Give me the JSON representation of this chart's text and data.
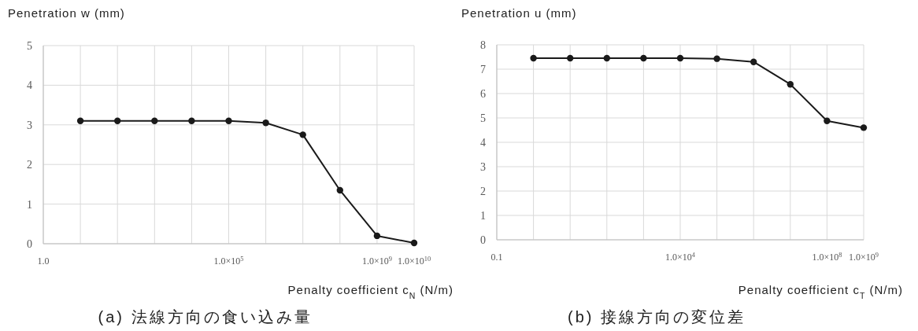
{
  "chart_data": [
    {
      "type": "line",
      "title": "(a) 法線方向の食い込み量",
      "ylabel": "Penetration w (mm)",
      "xlabel": "Penalty coefficient c$_{N}$ (N/m)",
      "categories": [
        "1.0",
        null,
        null,
        null,
        null,
        "1.0×10$^{5}$",
        null,
        null,
        null,
        "1.0×10$^{9}$",
        "1.0×10$^{10}$"
      ],
      "series": [
        {
          "color": "#1a1a1a",
          "values": [
            null,
            3.1,
            3.1,
            3.1,
            3.1,
            3.1,
            3.05,
            2.75,
            1.35,
            0.2,
            0.02
          ]
        }
      ],
      "ylim": [
        0,
        5
      ],
      "yticks": [
        0,
        1,
        2,
        3,
        4,
        5
      ],
      "grid": true,
      "marker": "circle",
      "line_style": "solid"
    },
    {
      "type": "line",
      "title": "(b) 接線方向の変位差",
      "ylabel": "Penetration u (mm)",
      "xlabel": "Penalty coefficient c$_{T}$ (N/m)",
      "categories": [
        "0.1",
        null,
        null,
        null,
        null,
        "1.0×10$^{4}$",
        null,
        null,
        null,
        "1.0×10$^{8}$",
        "1.0×10$^{9}$"
      ],
      "series": [
        {
          "color": "#1a1a1a",
          "values": [
            null,
            7.45,
            7.45,
            7.45,
            7.45,
            7.45,
            7.43,
            7.3,
            6.38,
            4.88,
            4.6
          ]
        }
      ],
      "ylim": [
        0,
        8
      ],
      "yticks": [
        0,
        1,
        2,
        3,
        4,
        5,
        6,
        7,
        8
      ],
      "grid": true,
      "marker": "circle",
      "line_style": "solid"
    }
  ]
}
